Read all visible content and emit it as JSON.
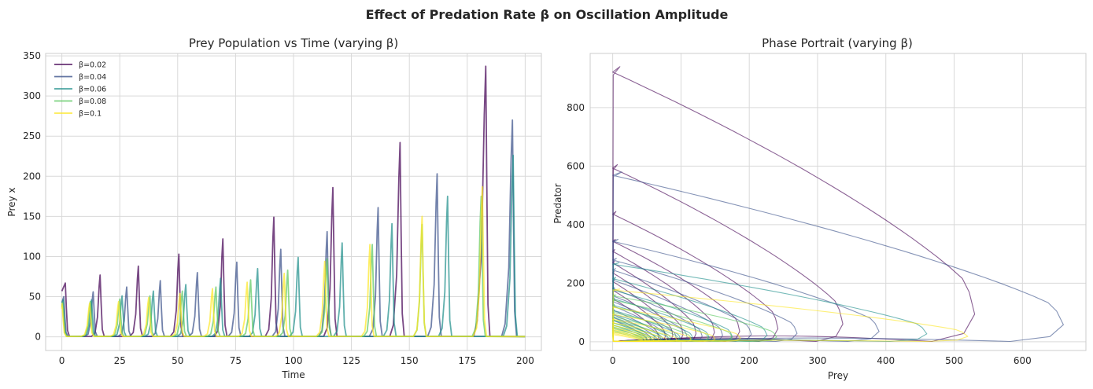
{
  "figure": {
    "suptitle": "Effect of Predation Rate β on Oscillation Amplitude"
  },
  "chart_data": [
    {
      "type": "line",
      "title": "Prey Population vs Time (varying β)",
      "xlabel": "Time",
      "ylabel": "Prey x",
      "xlim": [
        -7,
        207
      ],
      "ylim": [
        -17,
        353
      ],
      "xticks": [
        0,
        25,
        50,
        75,
        100,
        125,
        150,
        175,
        200
      ],
      "yticks": [
        0,
        50,
        100,
        150,
        200,
        250,
        300,
        350
      ],
      "grid": true,
      "legend_position": "top-left",
      "series": [
        {
          "name": "β=0.02",
          "color": "#440154",
          "peaks": [
            [
              1.5,
              67
            ],
            [
              16.5,
              77
            ],
            [
              33,
              88
            ],
            [
              50.5,
              103
            ],
            [
              69.5,
              122
            ],
            [
              91.5,
              149
            ],
            [
              117,
              186
            ],
            [
              146,
              242
            ],
            [
              183,
              337
            ]
          ]
        },
        {
          "name": "β=0.04",
          "color": "#3b528b",
          "peaks": [
            [
              0.8,
              50
            ],
            [
              13.5,
              56
            ],
            [
              28,
              62
            ],
            [
              42.5,
              70
            ],
            [
              58.5,
              80
            ],
            [
              75.5,
              93
            ],
            [
              94.5,
              109
            ],
            [
              114.5,
              131
            ],
            [
              136.5,
              161
            ],
            [
              162,
              203
            ],
            [
              194.5,
              270
            ]
          ]
        },
        {
          "name": "β=0.06",
          "color": "#21908c",
          "peaks": [
            [
              0.5,
              46
            ],
            [
              12.8,
              46
            ],
            [
              26,
              51
            ],
            [
              39.5,
              57
            ],
            [
              53.5,
              65
            ],
            [
              68.5,
              73
            ],
            [
              84.5,
              85
            ],
            [
              102,
              99
            ],
            [
              121,
              117
            ],
            [
              142.5,
              141
            ],
            [
              166.5,
              175
            ],
            [
              194.8,
              226
            ]
          ]
        },
        {
          "name": "β=0.08",
          "color": "#5ec962",
          "peaks": [
            [
              0.3,
              43
            ],
            [
              12.3,
              44
            ],
            [
              25,
              47
            ],
            [
              38,
              51
            ],
            [
              52,
              57
            ],
            [
              66.5,
              62
            ],
            [
              81.5,
              71
            ],
            [
              97.5,
              83
            ],
            [
              114.5,
              97
            ],
            [
              134,
              115
            ],
            [
              155.5,
              140
            ],
            [
              181,
              175
            ]
          ]
        },
        {
          "name": "β=0.1",
          "color": "#fde725",
          "peaks": [
            [
              0.1,
              41
            ],
            [
              12,
              42
            ],
            [
              24.5,
              44
            ],
            [
              37.5,
              49
            ],
            [
              51,
              54
            ],
            [
              65,
              60
            ],
            [
              80,
              68
            ],
            [
              96,
              79
            ],
            [
              113.5,
              94
            ],
            [
              133,
              115
            ],
            [
              155.5,
              150
            ],
            [
              181.5,
              187
            ]
          ]
        }
      ]
    },
    {
      "type": "line",
      "title": "Phase Portrait (varying β)",
      "xlabel": "Prey",
      "ylabel": "Predator",
      "xlim": [
        -33,
        693
      ],
      "ylim": [
        -30,
        985
      ],
      "xticks": [
        0,
        100,
        200,
        300,
        400,
        500,
        600
      ],
      "yticks": [
        0,
        200,
        400,
        600,
        800
      ],
      "grid": true,
      "series": [
        {
          "name": "β=0.02",
          "color": "#440154",
          "loops": [
            [
              67,
              150
            ],
            [
              77,
              180
            ],
            [
              88,
              210
            ],
            [
              103,
              240
            ],
            [
              122,
              275
            ],
            [
              149,
              315
            ],
            [
              186,
              350
            ],
            [
              242,
              445
            ],
            [
              337,
              605
            ],
            [
              530,
              940
            ]
          ]
        },
        {
          "name": "β=0.04",
          "color": "#3b528b",
          "loops": [
            [
              50,
              75
            ],
            [
              56,
              85
            ],
            [
              62,
              95
            ],
            [
              70,
              110
            ],
            [
              80,
              125
            ],
            [
              93,
              140
            ],
            [
              109,
              160
            ],
            [
              131,
              185
            ],
            [
              161,
              215
            ],
            [
              203,
              250
            ],
            [
              270,
              285
            ],
            [
              390,
              350
            ],
            [
              660,
              580
            ]
          ]
        },
        {
          "name": "β=0.06",
          "color": "#21908c",
          "loops": [
            [
              46,
              50
            ],
            [
              51,
              58
            ],
            [
              57,
              66
            ],
            [
              65,
              75
            ],
            [
              73,
              85
            ],
            [
              85,
              97
            ],
            [
              99,
              110
            ],
            [
              117,
              128
            ],
            [
              141,
              150
            ],
            [
              175,
              180
            ],
            [
              226,
              220
            ],
            [
              460,
              270
            ]
          ]
        },
        {
          "name": "β=0.08",
          "color": "#5ec962",
          "loops": [
            [
              44,
              35
            ],
            [
              47,
              40
            ],
            [
              51,
              46
            ],
            [
              57,
              52
            ],
            [
              62,
              58
            ],
            [
              71,
              66
            ],
            [
              83,
              76
            ],
            [
              97,
              88
            ],
            [
              115,
              103
            ],
            [
              140,
              122
            ],
            [
              175,
              145
            ],
            [
              240,
              160
            ]
          ]
        },
        {
          "name": "β=0.1",
          "color": "#fde725",
          "loops": [
            [
              42,
              25
            ],
            [
              44,
              29
            ],
            [
              49,
              33
            ],
            [
              54,
              37
            ],
            [
              60,
              42
            ],
            [
              68,
              48
            ],
            [
              79,
              56
            ],
            [
              94,
              66
            ],
            [
              115,
              78
            ],
            [
              150,
              95
            ],
            [
              187,
              120
            ],
            [
              520,
              180
            ]
          ]
        }
      ]
    }
  ]
}
